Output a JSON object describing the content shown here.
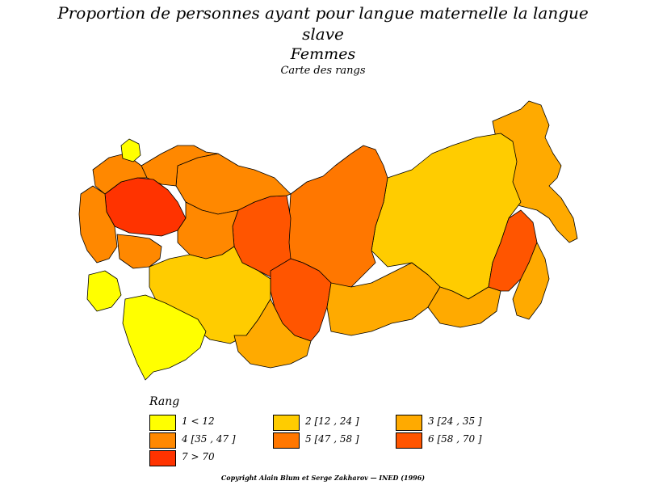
{
  "title": {
    "line1": "Proportion de personnes ayant pour langue maternelle la langue",
    "line2": "slave",
    "subtitle": "Femmes",
    "caption": "Carte des rangs"
  },
  "legend": {
    "title": "Rang",
    "items": [
      {
        "label": "1  <  12",
        "color": "#ffff00"
      },
      {
        "label": "2  [12  ,  24 ]",
        "color": "#ffcc00"
      },
      {
        "label": "3  [24  ,  35 ]",
        "color": "#ffaa00"
      },
      {
        "label": "4  [35  ,  47 ]",
        "color": "#ff8800"
      },
      {
        "label": "5  [47  ,  58 ]",
        "color": "#ff7700"
      },
      {
        "label": "6  [58  ,  70 ]",
        "color": "#ff5500"
      },
      {
        "label": "7  >  70",
        "color": "#ff3300"
      }
    ]
  },
  "copyright": "Copyright Alain Blum et Serge Zakharov  —  INED (1996)"
}
